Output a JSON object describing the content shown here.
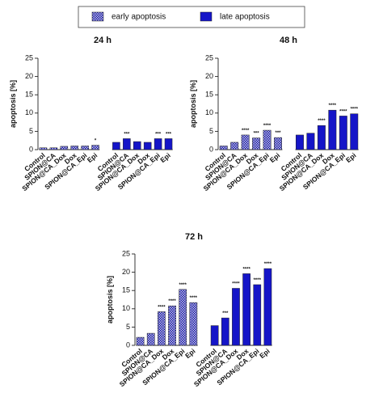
{
  "chart_data": [
    {
      "type": "bar",
      "title": "24 h",
      "y_label": "apoptosis [%]",
      "categories": [
        "Control",
        "SPION@CA",
        "SPION@CA_Dox",
        "Dox",
        "SPION@CA_Epi",
        "Epi"
      ],
      "ylim": [
        0,
        25
      ],
      "yticks": [
        0,
        5,
        10,
        15,
        20,
        25
      ],
      "series": [
        {
          "name": "early apoptosis",
          "color": "#1515b0",
          "hatch": true,
          "values": [
            0.5,
            0.5,
            0.9,
            1.0,
            1.0,
            1.2
          ],
          "annotations": [
            null,
            null,
            null,
            null,
            null,
            "*"
          ]
        },
        {
          "name": "late apoptosis",
          "color": "#1515c8",
          "hatch": false,
          "values": [
            2.0,
            3.0,
            2.2,
            2.0,
            3.0,
            3.0
          ],
          "annotations": [
            null,
            "***",
            null,
            null,
            "***",
            "***"
          ]
        }
      ]
    },
    {
      "type": "bar",
      "title": "48 h",
      "y_label": "apoptosis [%]",
      "categories": [
        "Control",
        "SPION@CA",
        "SPION@CA_Dox",
        "Dox",
        "SPION@CA_Epi",
        "Epi"
      ],
      "ylim": [
        0,
        25
      ],
      "yticks": [
        0,
        5,
        10,
        15,
        20,
        25
      ],
      "series": [
        {
          "color": "#1515b0",
          "hatch": true,
          "values": [
            1.0,
            2.0,
            4.0,
            3.2,
            5.3,
            3.3
          ],
          "annotations": [
            null,
            null,
            "****",
            "***",
            "****",
            "***"
          ]
        },
        {
          "color": "#1515c8",
          "hatch": false,
          "values": [
            4.0,
            4.5,
            6.6,
            10.8,
            9.2,
            9.8
          ],
          "annotations": [
            null,
            null,
            "****",
            "****",
            "****",
            "****"
          ]
        }
      ]
    },
    {
      "type": "bar",
      "title": "72 h",
      "y_label": "apoptosis [%]",
      "categories": [
        "Control",
        "SPION@CA",
        "SPION@CA_Dox",
        "Dox",
        "SPION@CA_Epi",
        "Epi"
      ],
      "ylim": [
        0,
        25
      ],
      "yticks": [
        0,
        5,
        10,
        15,
        20,
        25
      ],
      "series": [
        {
          "color": "#1515b0",
          "hatch": true,
          "values": [
            2.2,
            3.3,
            9.2,
            10.8,
            15.3,
            11.7
          ],
          "annotations": [
            null,
            null,
            "****",
            "****",
            "****",
            "****"
          ]
        },
        {
          "color": "#1515c8",
          "hatch": false,
          "values": [
            5.4,
            7.5,
            15.6,
            19.6,
            16.6,
            21.0
          ],
          "annotations": [
            null,
            "***",
            "****",
            "****",
            "****",
            "****"
          ]
        }
      ]
    }
  ]
}
